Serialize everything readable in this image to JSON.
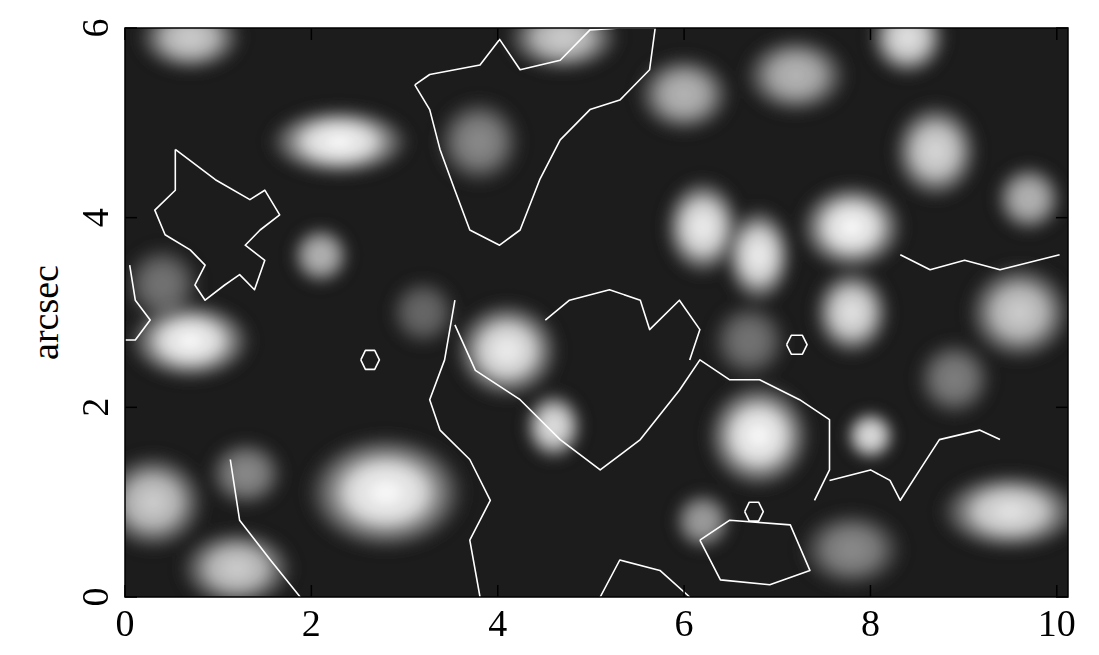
{
  "chart_data": {
    "type": "image",
    "y_label": "arcsec",
    "xlim": [
      0,
      10.12
    ],
    "ylim": [
      0,
      6
    ],
    "xticks": [
      0,
      2,
      4,
      6,
      8,
      10
    ],
    "yticks": [
      0,
      2,
      4,
      6
    ],
    "granules": [
      {
        "x": 0.7,
        "y": 5.9,
        "width": 0.9,
        "height": 0.5,
        "intensity": 0.8
      },
      {
        "x": 2.3,
        "y": 4.8,
        "width": 1.3,
        "height": 0.5,
        "intensity": 1.0
      },
      {
        "x": 0.7,
        "y": 2.7,
        "width": 1.1,
        "height": 0.6,
        "intensity": 1.0
      },
      {
        "x": 2.1,
        "y": 3.6,
        "width": 0.4,
        "height": 0.4,
        "intensity": 0.7
      },
      {
        "x": 2.8,
        "y": 1.1,
        "width": 1.5,
        "height": 1.0,
        "intensity": 1.0
      },
      {
        "x": 4.1,
        "y": 2.6,
        "width": 0.9,
        "height": 0.8,
        "intensity": 0.95
      },
      {
        "x": 4.6,
        "y": 1.8,
        "width": 0.4,
        "height": 0.5,
        "intensity": 0.9
      },
      {
        "x": 3.8,
        "y": 4.8,
        "width": 0.7,
        "height": 0.7,
        "intensity": 0.5
      },
      {
        "x": 4.7,
        "y": 5.9,
        "width": 1.0,
        "height": 0.5,
        "intensity": 0.8
      },
      {
        "x": 6.2,
        "y": 3.9,
        "width": 0.6,
        "height": 0.8,
        "intensity": 0.95
      },
      {
        "x": 6.8,
        "y": 3.6,
        "width": 0.5,
        "height": 0.8,
        "intensity": 0.95
      },
      {
        "x": 6.7,
        "y": 2.7,
        "width": 0.6,
        "height": 0.6,
        "intensity": 0.4
      },
      {
        "x": 6.8,
        "y": 1.7,
        "width": 0.9,
        "height": 0.9,
        "intensity": 1.0
      },
      {
        "x": 7.8,
        "y": 3.9,
        "width": 0.9,
        "height": 0.7,
        "intensity": 1.0
      },
      {
        "x": 7.8,
        "y": 3.0,
        "width": 0.6,
        "height": 0.7,
        "intensity": 0.9
      },
      {
        "x": 7.2,
        "y": 5.5,
        "width": 0.9,
        "height": 0.6,
        "intensity": 0.7
      },
      {
        "x": 8.4,
        "y": 5.9,
        "width": 0.6,
        "height": 0.6,
        "intensity": 0.9
      },
      {
        "x": 8.7,
        "y": 4.7,
        "width": 0.7,
        "height": 0.8,
        "intensity": 0.85
      },
      {
        "x": 9.6,
        "y": 3.0,
        "width": 0.9,
        "height": 0.8,
        "intensity": 0.8
      },
      {
        "x": 9.7,
        "y": 4.2,
        "width": 0.5,
        "height": 0.5,
        "intensity": 0.7
      },
      {
        "x": 9.5,
        "y": 0.9,
        "width": 1.3,
        "height": 0.6,
        "intensity": 0.9
      },
      {
        "x": 8.0,
        "y": 1.7,
        "width": 0.3,
        "height": 0.3,
        "intensity": 0.9
      },
      {
        "x": 6.2,
        "y": 0.8,
        "width": 0.4,
        "height": 0.4,
        "intensity": 0.6
      },
      {
        "x": 0.4,
        "y": 3.3,
        "width": 0.6,
        "height": 0.6,
        "intensity": 0.4
      },
      {
        "x": 0.3,
        "y": 1.0,
        "width": 0.9,
        "height": 0.8,
        "intensity": 0.8
      },
      {
        "x": 1.2,
        "y": 0.3,
        "width": 1.0,
        "height": 0.6,
        "intensity": 0.8
      },
      {
        "x": 1.3,
        "y": 1.3,
        "width": 0.6,
        "height": 0.5,
        "intensity": 0.5
      },
      {
        "x": 6.0,
        "y": 5.3,
        "width": 0.8,
        "height": 0.6,
        "intensity": 0.7
      },
      {
        "x": 7.8,
        "y": 0.5,
        "width": 0.9,
        "height": 0.6,
        "intensity": 0.5
      },
      {
        "x": 3.2,
        "y": 3.0,
        "width": 0.5,
        "height": 0.5,
        "intensity": 0.35
      },
      {
        "x": 8.9,
        "y": 2.3,
        "width": 0.6,
        "height": 0.6,
        "intensity": 0.45
      }
    ],
    "contours": [
      {
        "x": [
          0.54,
          0.97,
          1.34,
          1.5,
          1.66,
          1.45,
          1.29,
          1.5,
          1.39,
          1.23,
          1.07,
          0.86,
          0.75,
          0.86,
          0.7,
          0.43,
          0.32,
          0.54,
          0.54
        ],
        "y": [
          4.72,
          4.4,
          4.19,
          4.29,
          4.03,
          3.87,
          3.71,
          3.55,
          3.24,
          3.4,
          3.29,
          3.13,
          3.29,
          3.5,
          3.66,
          3.82,
          4.08,
          4.29,
          4.72
        ]
      },
      {
        "x": [
          3.11,
          3.27,
          3.81,
          4.02,
          4.24,
          4.67,
          4.99,
          5.31,
          5.69,
          5.63,
          5.31,
          4.99,
          4.67,
          4.45,
          4.24,
          4.02,
          3.7,
          3.54,
          3.38,
          3.27,
          3.11
        ],
        "y": [
          5.4,
          5.51,
          5.61,
          5.88,
          5.56,
          5.66,
          5.98,
          6.0,
          6.0,
          5.56,
          5.24,
          5.14,
          4.82,
          4.4,
          3.87,
          3.71,
          3.87,
          4.29,
          4.72,
          5.14,
          5.4
        ]
      },
      {
        "x": [
          3.54,
          3.76,
          4.24,
          4.67,
          5.1,
          5.53,
          5.95,
          6.17,
          6.49,
          6.81,
          7.24,
          7.56,
          7.56,
          7.4
        ],
        "y": [
          2.87,
          2.39,
          2.08,
          1.66,
          1.34,
          1.66,
          2.18,
          2.5,
          2.29,
          2.29,
          2.08,
          1.87,
          1.34,
          1.02
        ]
      },
      {
        "x": [
          3.54,
          3.43,
          3.27,
          3.38,
          3.7,
          3.92,
          3.7,
          3.81
        ],
        "y": [
          3.13,
          2.5,
          2.08,
          1.76,
          1.45,
          1.02,
          0.6,
          0.0
        ]
      },
      {
        "x": [
          4.51,
          4.77,
          5.2,
          5.53,
          5.63,
          5.95,
          6.17,
          6.06
        ],
        "y": [
          2.92,
          3.13,
          3.24,
          3.13,
          2.82,
          3.13,
          2.82,
          2.5
        ]
      },
      {
        "x": [
          6.17,
          6.49,
          7.14,
          7.35,
          6.92,
          6.39,
          6.17
        ],
        "y": [
          0.6,
          0.81,
          0.76,
          0.28,
          0.13,
          0.18,
          0.6
        ]
      },
      {
        "x": [
          5.1,
          5.31,
          5.74,
          6.06
        ],
        "y": [
          0.0,
          0.39,
          0.28,
          0.0
        ]
      },
      {
        "x": [
          7.56,
          8.0,
          8.21,
          8.32,
          8.53,
          8.74,
          9.17,
          9.39
        ],
        "y": [
          1.23,
          1.34,
          1.23,
          1.02,
          1.34,
          1.66,
          1.76,
          1.66
        ]
      },
      {
        "x": [
          1.13,
          1.23,
          1.56,
          1.88
        ],
        "y": [
          1.45,
          0.81,
          0.39,
          0.0
        ]
      },
      {
        "x": [
          0.05,
          0.11,
          0.27,
          0.11,
          0.0
        ],
        "y": [
          3.5,
          3.13,
          2.92,
          2.71,
          2.71
        ]
      },
      {
        "x": [
          7.1,
          7.15,
          7.27,
          7.32,
          7.27,
          7.15,
          7.1
        ],
        "y": [
          2.66,
          2.76,
          2.76,
          2.66,
          2.56,
          2.56,
          2.66
        ]
      },
      {
        "x": [
          2.53,
          2.58,
          2.68,
          2.73,
          2.68,
          2.58,
          2.53
        ],
        "y": [
          2.5,
          2.6,
          2.6,
          2.5,
          2.4,
          2.4,
          2.5
        ]
      },
      {
        "x": [
          6.65,
          6.7,
          6.8,
          6.85,
          6.8,
          6.7,
          6.65
        ],
        "y": [
          0.9,
          1.0,
          1.0,
          0.9,
          0.8,
          0.8,
          0.9
        ]
      },
      {
        "x": [
          8.32,
          8.64,
          9.01,
          9.39,
          10.03
        ],
        "y": [
          3.61,
          3.45,
          3.55,
          3.45,
          3.61
        ]
      }
    ]
  }
}
